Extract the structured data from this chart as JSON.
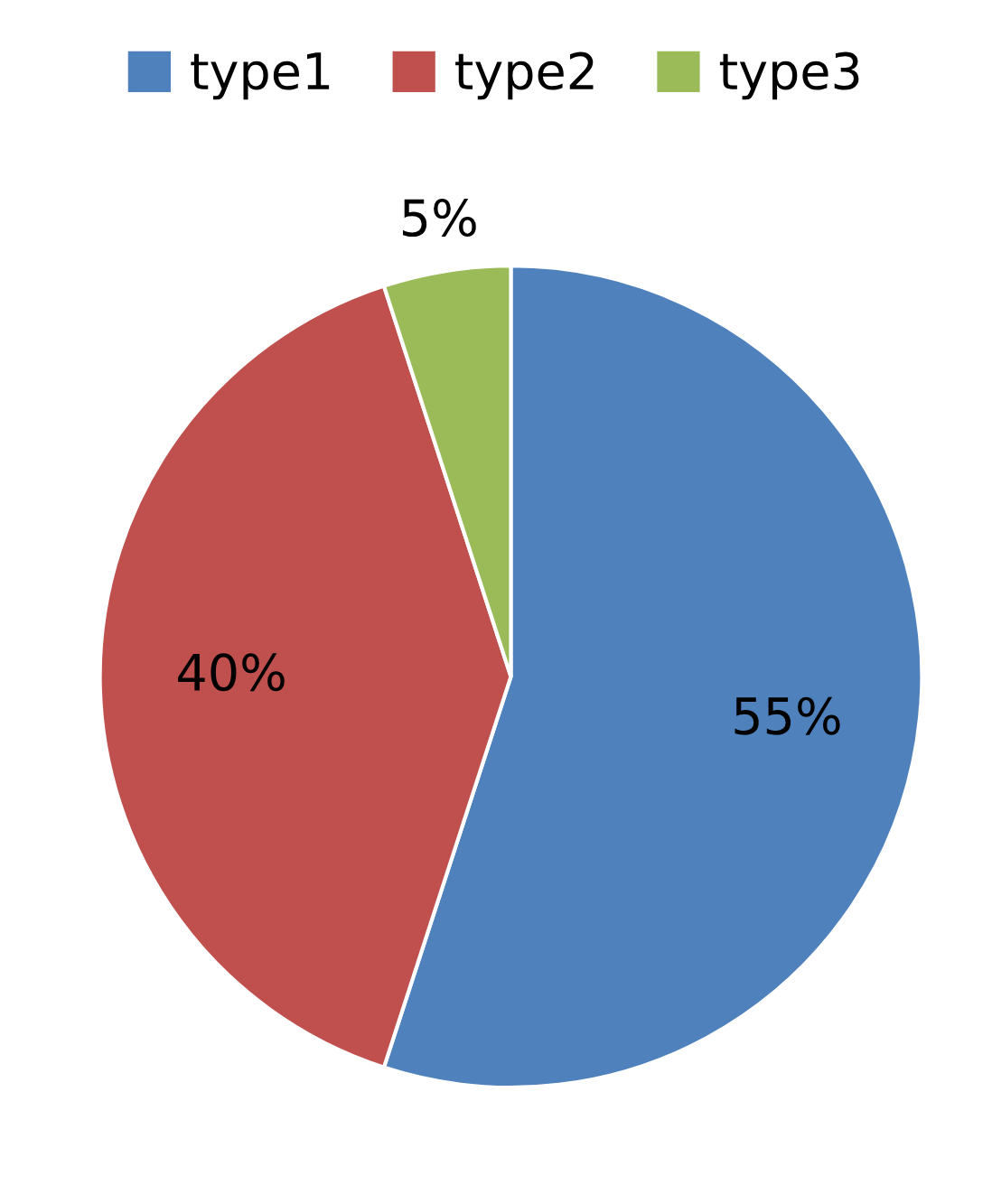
{
  "chart_data": {
    "type": "pie",
    "categories": [
      "type1",
      "type2",
      "type3"
    ],
    "values": [
      55,
      40,
      5
    ],
    "colors": [
      "#4f81bd",
      "#c0504d",
      "#9bbb59"
    ],
    "value_labels": [
      "55%",
      "40%",
      "5%"
    ],
    "legend": "top"
  }
}
